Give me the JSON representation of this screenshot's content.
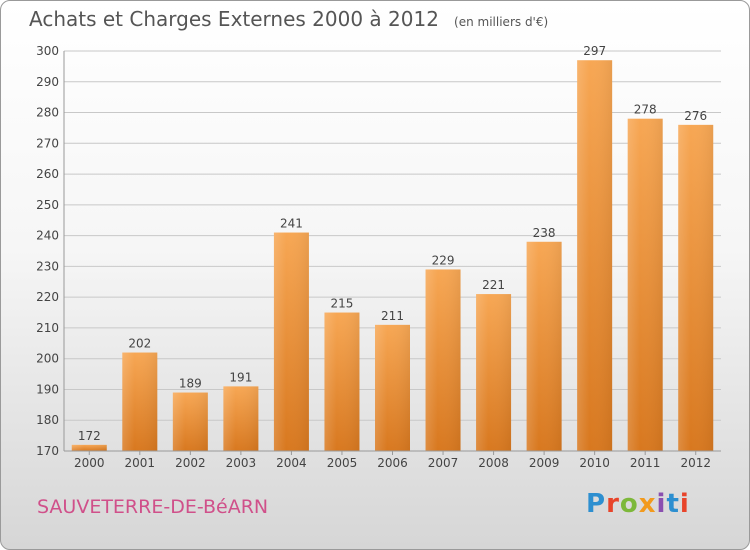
{
  "title": "Achats et Charges Externes 2000 à 2012",
  "unit": "(en milliers d'€)",
  "place": "SAUVETERRE-DE-BéARN",
  "logo": "Proxiti",
  "colors": {
    "bar_top": "#f7a754",
    "bar_bottom": "#d8781f",
    "title": "#555555",
    "place": "#d0508a"
  },
  "chart_data": {
    "type": "bar",
    "title": "Achats et Charges Externes 2000 à 2012",
    "categories": [
      "2000",
      "2001",
      "2002",
      "2003",
      "2004",
      "2005",
      "2006",
      "2007",
      "2008",
      "2009",
      "2010",
      "2011",
      "2012"
    ],
    "values": [
      172,
      202,
      189,
      191,
      241,
      215,
      211,
      229,
      221,
      238,
      297,
      278,
      276
    ],
    "ylim": [
      170,
      300
    ],
    "yticks": [
      170,
      180,
      190,
      200,
      210,
      220,
      230,
      240,
      250,
      260,
      270,
      280,
      290,
      300
    ],
    "grid": true,
    "xlabel": "",
    "ylabel": ""
  }
}
